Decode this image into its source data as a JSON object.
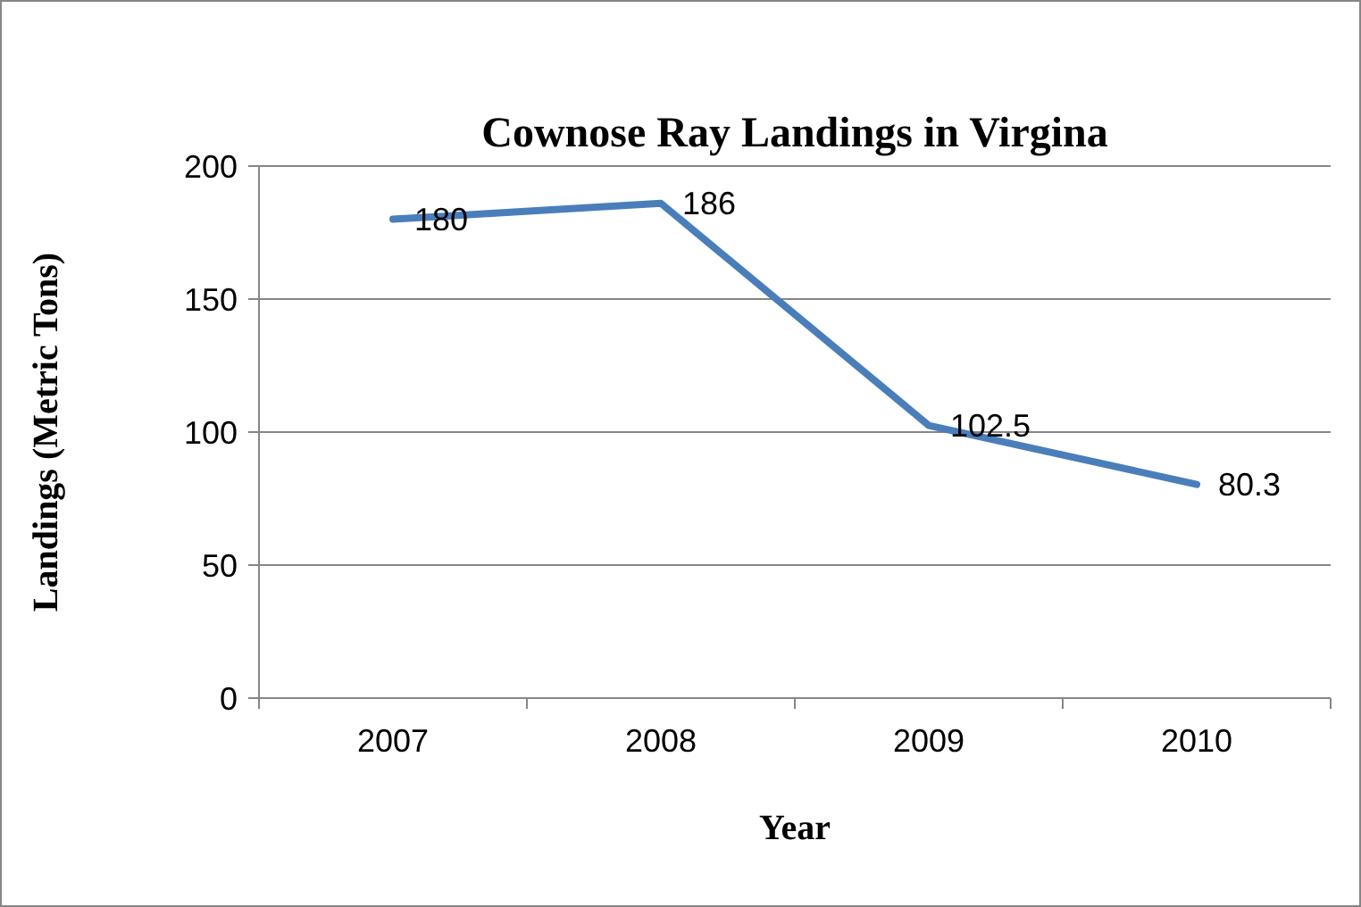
{
  "chart_data": {
    "type": "line",
    "title": "Cownose Ray Landings in Virgina",
    "xlabel": "Year",
    "ylabel": "Landings (Metric Tons)",
    "categories": [
      "2007",
      "2008",
      "2009",
      "2010"
    ],
    "series": [
      {
        "color": "#4a7ebb",
        "values": [
          180,
          186,
          102.5,
          80.3
        ]
      }
    ],
    "ylim": [
      0,
      200
    ],
    "yticks": [
      0,
      50,
      100,
      150,
      200
    ],
    "grid": "y",
    "data_labels": true,
    "marker": "none",
    "line_style": "solid"
  }
}
